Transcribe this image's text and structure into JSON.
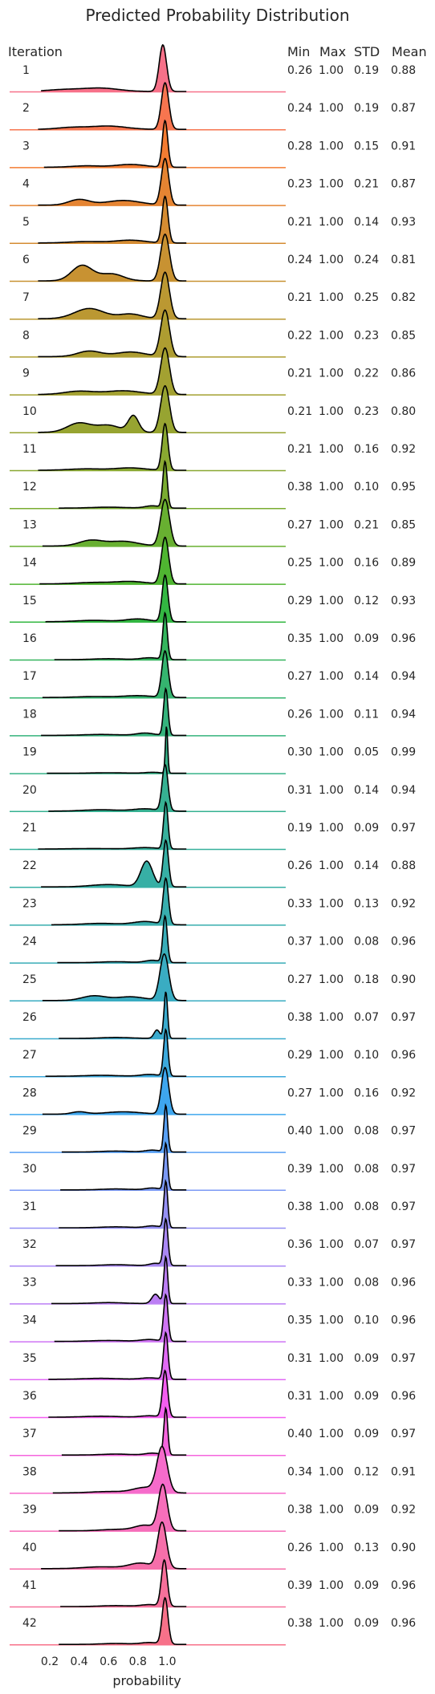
{
  "chart_data": {
    "type": "ridgeline",
    "title": "Predicted Probability Distribution",
    "xlabel": "probability",
    "ylabel": "Iteration",
    "xticks": [
      "0.2",
      "0.4",
      "0.6",
      "0.8",
      "1.0"
    ],
    "xlim": [
      0.11,
      1.18
    ],
    "stat_headers": [
      "Min",
      "Max",
      "STD",
      "Mean"
    ],
    "colors": [
      "#f77189",
      "#f7754f",
      "#f37c32",
      "#e58432",
      "#d58c32",
      "#c89232",
      "#bb9832",
      "#ae9d31",
      "#a3a131",
      "#97a431",
      "#89a831",
      "#7aac31",
      "#68b031",
      "#4fb531",
      "#33b742",
      "#34b55d",
      "#35b46f",
      "#35b37c",
      "#36b288",
      "#36b192",
      "#37b09c",
      "#37afa5",
      "#38aeae",
      "#39adb8",
      "#3aacc2",
      "#3babce",
      "#3ca9dc",
      "#3ea6ee",
      "#58a0f4",
      "#7b99f4",
      "#9590f4",
      "#aa88f4",
      "#bc7ef4",
      "#cf74f4",
      "#e16af4",
      "#f45ef0",
      "#f565dd",
      "#f66bcb",
      "#f66eba",
      "#f66faa",
      "#f6709a",
      "#f77189"
    ],
    "series": [
      {
        "name": "1",
        "min": "0.26",
        "max": "1.00",
        "std": "0.19",
        "mean": "0.88",
        "bumps": [
          [
            0.3,
            0.12,
            0.04
          ],
          [
            0.55,
            0.12,
            0.07
          ],
          [
            0.97,
            0.025,
            1.0
          ]
        ]
      },
      {
        "name": "2",
        "min": "0.24",
        "max": "1.00",
        "std": "0.19",
        "mean": "0.87",
        "bumps": [
          [
            0.35,
            0.1,
            0.04
          ],
          [
            0.6,
            0.12,
            0.07
          ],
          [
            0.985,
            0.025,
            1.0
          ]
        ]
      },
      {
        "name": "3",
        "min": "0.28",
        "max": "1.00",
        "std": "0.15",
        "mean": "0.91",
        "bumps": [
          [
            0.45,
            0.1,
            0.03
          ],
          [
            0.75,
            0.1,
            0.06
          ],
          [
            0.985,
            0.018,
            1.0
          ]
        ]
      },
      {
        "name": "4",
        "min": "0.23",
        "max": "1.00",
        "std": "0.21",
        "mean": "0.87",
        "bumps": [
          [
            0.4,
            0.07,
            0.12
          ],
          [
            0.7,
            0.12,
            0.1
          ],
          [
            0.985,
            0.025,
            1.0
          ]
        ]
      },
      {
        "name": "5",
        "min": "0.21",
        "max": "1.00",
        "std": "0.14",
        "mean": "0.93",
        "bumps": [
          [
            0.45,
            0.12,
            0.03
          ],
          [
            0.75,
            0.1,
            0.06
          ],
          [
            0.985,
            0.02,
            1.0
          ]
        ]
      },
      {
        "name": "6",
        "min": "0.24",
        "max": "1.00",
        "std": "0.24",
        "mean": "0.81",
        "bumps": [
          [
            0.42,
            0.07,
            0.33
          ],
          [
            0.62,
            0.08,
            0.15
          ],
          [
            0.985,
            0.03,
            1.0
          ]
        ]
      },
      {
        "name": "7",
        "min": "0.21",
        "max": "1.00",
        "std": "0.25",
        "mean": "0.82",
        "bumps": [
          [
            0.47,
            0.1,
            0.22
          ],
          [
            0.75,
            0.08,
            0.1
          ],
          [
            0.985,
            0.03,
            1.0
          ]
        ]
      },
      {
        "name": "8",
        "min": "0.22",
        "max": "1.00",
        "std": "0.23",
        "mean": "0.85",
        "bumps": [
          [
            0.47,
            0.08,
            0.12
          ],
          [
            0.75,
            0.1,
            0.1
          ],
          [
            0.985,
            0.03,
            1.0
          ]
        ]
      },
      {
        "name": "9",
        "min": "0.21",
        "max": "1.00",
        "std": "0.22",
        "mean": "0.86",
        "bumps": [
          [
            0.4,
            0.1,
            0.07
          ],
          [
            0.7,
            0.12,
            0.08
          ],
          [
            0.985,
            0.03,
            1.0
          ]
        ]
      },
      {
        "name": "10",
        "min": "0.21",
        "max": "1.00",
        "std": "0.23",
        "mean": "0.80",
        "bumps": [
          [
            0.4,
            0.08,
            0.2
          ],
          [
            0.6,
            0.08,
            0.15
          ],
          [
            0.77,
            0.035,
            0.35
          ],
          [
            0.985,
            0.03,
            1.0
          ]
        ]
      },
      {
        "name": "11",
        "min": "0.21",
        "max": "1.00",
        "std": "0.16",
        "mean": "0.92",
        "bumps": [
          [
            0.45,
            0.12,
            0.03
          ],
          [
            0.75,
            0.1,
            0.05
          ],
          [
            0.985,
            0.02,
            1.0
          ]
        ]
      },
      {
        "name": "12",
        "min": "0.38",
        "max": "1.00",
        "std": "0.10",
        "mean": "0.95",
        "bumps": [
          [
            0.6,
            0.12,
            0.02
          ],
          [
            0.9,
            0.05,
            0.05
          ],
          [
            0.985,
            0.015,
            1.0
          ]
        ]
      },
      {
        "name": "13",
        "min": "0.27",
        "max": "1.00",
        "std": "0.21",
        "mean": "0.85",
        "bumps": [
          [
            0.48,
            0.08,
            0.12
          ],
          [
            0.7,
            0.1,
            0.1
          ],
          [
            0.985,
            0.03,
            1.0
          ]
        ]
      },
      {
        "name": "14",
        "min": "0.25",
        "max": "1.00",
        "std": "0.16",
        "mean": "0.89",
        "bumps": [
          [
            0.5,
            0.12,
            0.03
          ],
          [
            0.75,
            0.1,
            0.05
          ],
          [
            0.985,
            0.025,
            1.0
          ]
        ]
      },
      {
        "name": "15",
        "min": "0.29",
        "max": "1.00",
        "std": "0.12",
        "mean": "0.93",
        "bumps": [
          [
            0.5,
            0.12,
            0.03
          ],
          [
            0.8,
            0.08,
            0.06
          ],
          [
            0.985,
            0.02,
            1.0
          ]
        ]
      },
      {
        "name": "16",
        "min": "0.35",
        "max": "1.00",
        "std": "0.09",
        "mean": "0.96",
        "bumps": [
          [
            0.6,
            0.1,
            0.02
          ],
          [
            0.88,
            0.06,
            0.04
          ],
          [
            0.985,
            0.015,
            1.0
          ]
        ]
      },
      {
        "name": "17",
        "min": "0.27",
        "max": "1.00",
        "std": "0.14",
        "mean": "0.94",
        "bumps": [
          [
            0.5,
            0.12,
            0.02
          ],
          [
            0.8,
            0.1,
            0.04
          ],
          [
            0.985,
            0.022,
            1.0
          ]
        ]
      },
      {
        "name": "18",
        "min": "0.26",
        "max": "1.00",
        "std": "0.11",
        "mean": "0.94",
        "bumps": [
          [
            0.55,
            0.12,
            0.02
          ],
          [
            0.85,
            0.06,
            0.05
          ],
          [
            0.99,
            0.015,
            1.0
          ]
        ]
      },
      {
        "name": "19",
        "min": "0.30",
        "max": "1.00",
        "std": "0.05",
        "mean": "0.99",
        "bumps": [
          [
            0.6,
            0.12,
            0.01
          ],
          [
            0.9,
            0.05,
            0.02
          ],
          [
            0.995,
            0.008,
            1.0
          ]
        ]
      },
      {
        "name": "20",
        "min": "0.31",
        "max": "1.00",
        "std": "0.14",
        "mean": "0.94",
        "bumps": [
          [
            0.55,
            0.12,
            0.03
          ],
          [
            0.85,
            0.08,
            0.05
          ],
          [
            0.985,
            0.02,
            1.0
          ]
        ]
      },
      {
        "name": "21",
        "min": "0.19",
        "max": "1.00",
        "std": "0.09",
        "mean": "0.97",
        "bumps": [
          [
            0.5,
            0.15,
            0.01
          ],
          [
            0.85,
            0.08,
            0.03
          ],
          [
            0.99,
            0.015,
            1.0
          ]
        ]
      },
      {
        "name": "22",
        "min": "0.26",
        "max": "1.00",
        "std": "0.14",
        "mean": "0.88",
        "bumps": [
          [
            0.6,
            0.12,
            0.05
          ],
          [
            0.86,
            0.04,
            0.55
          ],
          [
            0.99,
            0.018,
            1.0
          ]
        ]
      },
      {
        "name": "23",
        "min": "0.33",
        "max": "1.00",
        "std": "0.13",
        "mean": "0.92",
        "bumps": [
          [
            0.55,
            0.12,
            0.03
          ],
          [
            0.85,
            0.08,
            0.07
          ],
          [
            0.99,
            0.018,
            1.0
          ]
        ]
      },
      {
        "name": "24",
        "min": "0.37",
        "max": "1.00",
        "std": "0.08",
        "mean": "0.96",
        "bumps": [
          [
            0.65,
            0.1,
            0.02
          ],
          [
            0.9,
            0.05,
            0.05
          ],
          [
            0.985,
            0.015,
            1.0
          ]
        ]
      },
      {
        "name": "25",
        "min": "0.27",
        "max": "1.00",
        "std": "0.18",
        "mean": "0.90",
        "bumps": [
          [
            0.5,
            0.08,
            0.1
          ],
          [
            0.75,
            0.1,
            0.08
          ],
          [
            0.98,
            0.03,
            1.0
          ]
        ]
      },
      {
        "name": "26",
        "min": "0.38",
        "max": "1.00",
        "std": "0.07",
        "mean": "0.97",
        "bumps": [
          [
            0.65,
            0.1,
            0.02
          ],
          [
            0.93,
            0.02,
            0.18
          ],
          [
            0.99,
            0.012,
            1.0
          ]
        ]
      },
      {
        "name": "27",
        "min": "0.29",
        "max": "1.00",
        "std": "0.10",
        "mean": "0.96",
        "bumps": [
          [
            0.55,
            0.12,
            0.02
          ],
          [
            0.88,
            0.06,
            0.04
          ],
          [
            0.99,
            0.015,
            1.0
          ]
        ]
      },
      {
        "name": "28",
        "min": "0.27",
        "max": "1.00",
        "std": "0.16",
        "mean": "0.92",
        "bumps": [
          [
            0.4,
            0.05,
            0.05
          ],
          [
            0.7,
            0.12,
            0.05
          ],
          [
            0.985,
            0.025,
            1.0
          ]
        ]
      },
      {
        "name": "29",
        "min": "0.40",
        "max": "1.00",
        "std": "0.08",
        "mean": "0.97",
        "bumps": [
          [
            0.65,
            0.1,
            0.02
          ],
          [
            0.9,
            0.05,
            0.04
          ],
          [
            0.99,
            0.013,
            1.0
          ]
        ]
      },
      {
        "name": "30",
        "min": "0.39",
        "max": "1.00",
        "std": "0.08",
        "mean": "0.97",
        "bumps": [
          [
            0.65,
            0.1,
            0.02
          ],
          [
            0.9,
            0.05,
            0.04
          ],
          [
            0.99,
            0.013,
            1.0
          ]
        ]
      },
      {
        "name": "31",
        "min": "0.38",
        "max": "1.00",
        "std": "0.08",
        "mean": "0.97",
        "bumps": [
          [
            0.65,
            0.1,
            0.02
          ],
          [
            0.9,
            0.05,
            0.04
          ],
          [
            0.99,
            0.013,
            1.0
          ]
        ]
      },
      {
        "name": "32",
        "min": "0.36",
        "max": "1.00",
        "std": "0.07",
        "mean": "0.97",
        "bumps": [
          [
            0.65,
            0.1,
            0.02
          ],
          [
            0.92,
            0.04,
            0.05
          ],
          [
            0.99,
            0.015,
            1.0
          ]
        ]
      },
      {
        "name": "33",
        "min": "0.33",
        "max": "1.00",
        "std": "0.08",
        "mean": "0.96",
        "bumps": [
          [
            0.6,
            0.1,
            0.02
          ],
          [
            0.92,
            0.025,
            0.2
          ],
          [
            0.99,
            0.013,
            1.0
          ]
        ]
      },
      {
        "name": "34",
        "min": "0.35",
        "max": "1.00",
        "std": "0.10",
        "mean": "0.96",
        "bumps": [
          [
            0.6,
            0.12,
            0.02
          ],
          [
            0.88,
            0.06,
            0.04
          ],
          [
            0.99,
            0.015,
            1.0
          ]
        ]
      },
      {
        "name": "35",
        "min": "0.31",
        "max": "1.00",
        "std": "0.09",
        "mean": "0.97",
        "bumps": [
          [
            0.55,
            0.12,
            0.02
          ],
          [
            0.88,
            0.06,
            0.03
          ],
          [
            0.99,
            0.015,
            1.0
          ]
        ]
      },
      {
        "name": "36",
        "min": "0.31",
        "max": "1.00",
        "std": "0.09",
        "mean": "0.96",
        "bumps": [
          [
            0.55,
            0.12,
            0.02
          ],
          [
            0.88,
            0.06,
            0.03
          ],
          [
            0.985,
            0.018,
            1.0
          ]
        ]
      },
      {
        "name": "37",
        "min": "0.40",
        "max": "1.00",
        "std": "0.09",
        "mean": "0.97",
        "bumps": [
          [
            0.65,
            0.1,
            0.02
          ],
          [
            0.9,
            0.05,
            0.04
          ],
          [
            0.99,
            0.013,
            1.0
          ]
        ]
      },
      {
        "name": "38",
        "min": "0.34",
        "max": "1.00",
        "std": "0.12",
        "mean": "0.91",
        "bumps": [
          [
            0.6,
            0.12,
            0.03
          ],
          [
            0.85,
            0.08,
            0.12
          ],
          [
            0.965,
            0.035,
            1.0
          ]
        ]
      },
      {
        "name": "39",
        "min": "0.38",
        "max": "1.00",
        "std": "0.09",
        "mean": "0.92",
        "bumps": [
          [
            0.65,
            0.1,
            0.03
          ],
          [
            0.85,
            0.07,
            0.12
          ],
          [
            0.97,
            0.03,
            1.0
          ]
        ]
      },
      {
        "name": "40",
        "min": "0.26",
        "max": "1.00",
        "std": "0.13",
        "mean": "0.90",
        "bumps": [
          [
            0.55,
            0.12,
            0.04
          ],
          [
            0.82,
            0.08,
            0.12
          ],
          [
            0.965,
            0.03,
            1.0
          ]
        ]
      },
      {
        "name": "41",
        "min": "0.39",
        "max": "1.00",
        "std": "0.09",
        "mean": "0.96",
        "bumps": [
          [
            0.65,
            0.1,
            0.02
          ],
          [
            0.88,
            0.06,
            0.04
          ],
          [
            0.98,
            0.02,
            1.0
          ]
        ]
      },
      {
        "name": "42",
        "min": "0.38",
        "max": "1.00",
        "std": "0.09",
        "mean": "0.96",
        "bumps": [
          [
            0.65,
            0.1,
            0.02
          ],
          [
            0.88,
            0.06,
            0.04
          ],
          [
            0.985,
            0.02,
            1.0
          ]
        ]
      }
    ]
  }
}
